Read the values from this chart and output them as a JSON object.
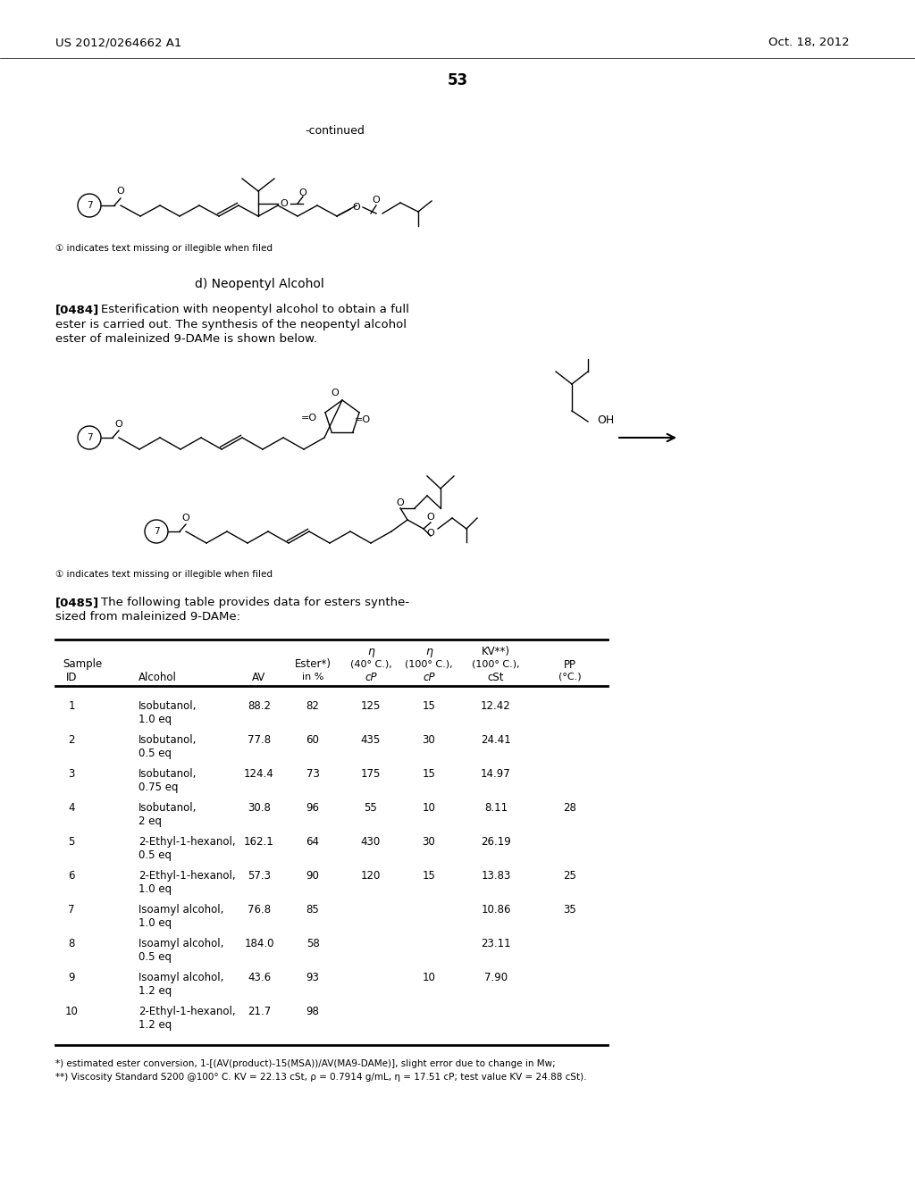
{
  "header_left": "US 2012/0264662 A1",
  "header_right": "Oct. 18, 2012",
  "page_number": "53",
  "continued_text": "-continued",
  "section_d_title": "d) Neopentyl Alcohol",
  "para_0484_bold": "[0484]",
  "para_0484_text": "   Esterification with neopentyl alcohol to obtain a full\nester is carried out. The synthesis of the neopentyl alcohol\nester of maleinized 9-DAMe is shown below.",
  "para_0485_bold": "[0485]",
  "para_0485_text": "   The following table provides data for esters synthe-\nsized from maleinized 9-DAMe:",
  "footnote1": "*) estimated ester conversion, 1-[(AV(product)-15(MSA))/AV(MA9-DAMe)], slight error due to change in Mw;",
  "footnote2": "**) Viscosity Standard S200 @100° C. KV = 22.13 cSt, ρ = 0.7914 g/mL, η = 17.51 cP; test value KV = 24.88 cSt).",
  "illegible_note": "① indicates text missing or illegible when filed",
  "table_data": [
    [
      "1",
      "Isobutanol,",
      "1.0 eq",
      "88.2",
      "82",
      "125",
      "15",
      "12.42",
      ""
    ],
    [
      "2",
      "Isobutanol,",
      "0.5 eq",
      "77.8",
      "60",
      "435",
      "30",
      "24.41",
      ""
    ],
    [
      "3",
      "Isobutanol,",
      "0.75 eq",
      "124.4",
      "73",
      "175",
      "15",
      "14.97",
      ""
    ],
    [
      "4",
      "Isobutanol,",
      "2 eq",
      "30.8",
      "96",
      "55",
      "10",
      "8.11",
      "28"
    ],
    [
      "5",
      "2-Ethyl-1-hexanol,",
      "0.5 eq",
      "162.1",
      "64",
      "430",
      "30",
      "26.19",
      ""
    ],
    [
      "6",
      "2-Ethyl-1-hexanol,",
      "1.0 eq",
      "57.3",
      "90",
      "120",
      "15",
      "13.83",
      "25"
    ],
    [
      "7",
      "Isoamyl alcohol,",
      "1.0 eq",
      "76.8",
      "85",
      "",
      "",
      "10.86",
      "35"
    ],
    [
      "8",
      "Isoamyl alcohol,",
      "0.5 eq",
      "184.0",
      "58",
      "",
      "",
      "23.11",
      ""
    ],
    [
      "9",
      "Isoamyl alcohol,",
      "1.2 eq",
      "43.6",
      "93",
      "",
      "10",
      "7.90",
      ""
    ],
    [
      "10",
      "2-Ethyl-1-hexanol,",
      "1.2 eq",
      "21.7",
      "98",
      "",
      "",
      "",
      ""
    ]
  ],
  "background_color": "#ffffff",
  "text_color": "#000000"
}
